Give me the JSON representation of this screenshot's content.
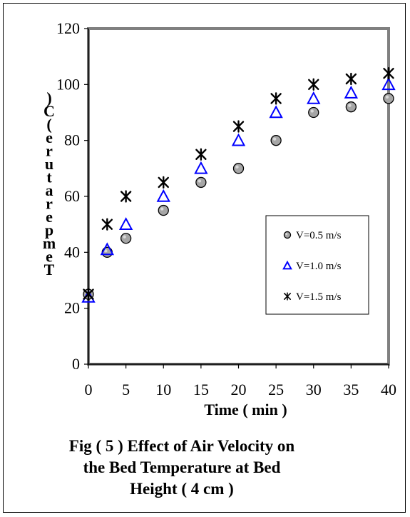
{
  "caption": {
    "line1": "Fig ( 5 ) Effect of Air Velocity on",
    "line2": "the Bed Temperature at Bed",
    "line3": "Height ( 4 cm )"
  },
  "chart_data": {
    "type": "scatter",
    "title": "",
    "xlabel": "Time ( min )",
    "ylabel": "Temperature ( C )",
    "ylabel_rendered_chars": [
      "T",
      "e",
      "m",
      "p",
      "e",
      "r",
      "a",
      "t",
      "u",
      "r",
      "e",
      "(",
      "C",
      ")"
    ],
    "xlim": [
      0,
      40
    ],
    "ylim": [
      0,
      120
    ],
    "x_ticks": [
      0,
      5,
      10,
      15,
      20,
      25,
      30,
      35,
      40
    ],
    "y_ticks": [
      0,
      20,
      40,
      60,
      80,
      100,
      120
    ],
    "legend_placement": "center-right inside plot",
    "grid": false,
    "series": [
      {
        "name": "V=0.5 m/s",
        "marker": "circle",
        "color": "#a6a6a6",
        "points": [
          [
            0,
            25
          ],
          [
            2.5,
            40
          ],
          [
            5,
            45
          ],
          [
            10,
            55
          ],
          [
            15,
            65
          ],
          [
            20,
            70
          ],
          [
            25,
            80
          ],
          [
            30,
            90
          ],
          [
            35,
            92
          ],
          [
            40,
            95
          ]
        ]
      },
      {
        "name": "V=1.0 m/s",
        "marker": "triangle",
        "color": "#0000ff",
        "points": [
          [
            0,
            24
          ],
          [
            2.5,
            41
          ],
          [
            5,
            50
          ],
          [
            10,
            60
          ],
          [
            15,
            70
          ],
          [
            20,
            80
          ],
          [
            25,
            90
          ],
          [
            30,
            95
          ],
          [
            35,
            97
          ],
          [
            40,
            100
          ]
        ]
      },
      {
        "name": "V=1.5 m/s",
        "marker": "star",
        "color": "#000000",
        "points": [
          [
            0,
            25
          ],
          [
            2.5,
            50
          ],
          [
            5,
            60
          ],
          [
            10,
            65
          ],
          [
            15,
            75
          ],
          [
            20,
            85
          ],
          [
            25,
            95
          ],
          [
            30,
            100
          ],
          [
            35,
            102
          ],
          [
            40,
            104
          ]
        ]
      }
    ]
  }
}
